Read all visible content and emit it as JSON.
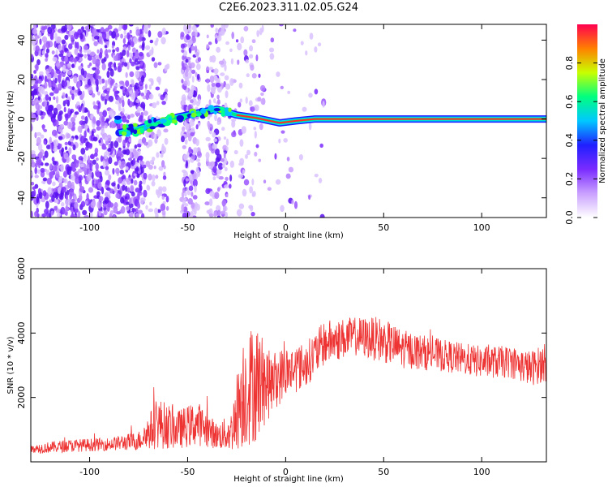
{
  "title": "C2E6.2023.311.02.05.G24",
  "chart_data": [
    {
      "type": "heatmap",
      "xlabel": "Height of straight line (km)",
      "ylabel": "Frequency (Hz)",
      "xlim": [
        -130,
        133
      ],
      "ylim": [
        -50,
        48
      ],
      "x_ticks": [
        -100,
        -50,
        0,
        50,
        100
      ],
      "y_ticks": [
        -40,
        -20,
        0,
        20,
        40
      ],
      "colorbar": {
        "label": "Normalized spectral amplitude",
        "range": [
          0.0,
          1.0
        ],
        "ticks": [
          "0.0",
          "0.2",
          "0.4",
          "0.6",
          "0.8"
        ],
        "colormap": [
          "#ffffff",
          "#c9a0ff",
          "#7a2cff",
          "#2020ff",
          "#00c8ff",
          "#00ff80",
          "#c8ff00",
          "#ff8000",
          "#ff0050"
        ]
      },
      "ridge": [
        {
          "x": -85,
          "y": -7
        },
        {
          "x": -75,
          "y": -5
        },
        {
          "x": -65,
          "y": -2
        },
        {
          "x": -55,
          "y": 1
        },
        {
          "x": -45,
          "y": 3
        },
        {
          "x": -35,
          "y": 5
        },
        {
          "x": -25,
          "y": 2
        },
        {
          "x": -15,
          "y": 0.5
        },
        {
          "x": -3,
          "y": -2
        },
        {
          "x": 5,
          "y": -1
        },
        {
          "x": 15,
          "y": 0
        },
        {
          "x": 133,
          "y": 0
        }
      ]
    },
    {
      "type": "line",
      "xlabel": "Height of straight line (km)",
      "ylabel": "SNR (10 * v/v)",
      "xlim": [
        -130,
        133
      ],
      "ylim": [
        0,
        6000
      ],
      "x_ticks": [
        -100,
        -50,
        0,
        50,
        100
      ],
      "y_ticks": [
        2000,
        4000,
        6000
      ],
      "color": "#ee3333",
      "series": [
        {
          "envelope": [
            {
              "x": -130,
              "mean": 400,
              "amp": 150
            },
            {
              "x": -110,
              "mean": 500,
              "amp": 200
            },
            {
              "x": -90,
              "mean": 550,
              "amp": 200
            },
            {
              "x": -75,
              "mean": 650,
              "amp": 300
            },
            {
              "x": -65,
              "mean": 1200,
              "amp": 800
            },
            {
              "x": -55,
              "mean": 1000,
              "amp": 600
            },
            {
              "x": -45,
              "mean": 1200,
              "amp": 700
            },
            {
              "x": -35,
              "mean": 800,
              "amp": 400
            },
            {
              "x": -28,
              "mean": 900,
              "amp": 600
            },
            {
              "x": -22,
              "mean": 2200,
              "amp": 1800
            },
            {
              "x": -15,
              "mean": 2500,
              "amp": 1900
            },
            {
              "x": -8,
              "mean": 2400,
              "amp": 1000
            },
            {
              "x": 0,
              "mean": 2800,
              "amp": 800
            },
            {
              "x": 10,
              "mean": 3000,
              "amp": 700
            },
            {
              "x": 20,
              "mean": 3700,
              "amp": 700
            },
            {
              "x": 35,
              "mean": 3900,
              "amp": 600
            },
            {
              "x": 48,
              "mean": 3800,
              "amp": 700
            },
            {
              "x": 60,
              "mean": 3500,
              "amp": 600
            },
            {
              "x": 80,
              "mean": 3300,
              "amp": 500
            },
            {
              "x": 100,
              "mean": 3100,
              "amp": 500
            },
            {
              "x": 115,
              "mean": 3100,
              "amp": 500
            },
            {
              "x": 125,
              "mean": 2900,
              "amp": 550
            },
            {
              "x": 133,
              "mean": 3100,
              "amp": 600
            }
          ]
        }
      ]
    }
  ]
}
